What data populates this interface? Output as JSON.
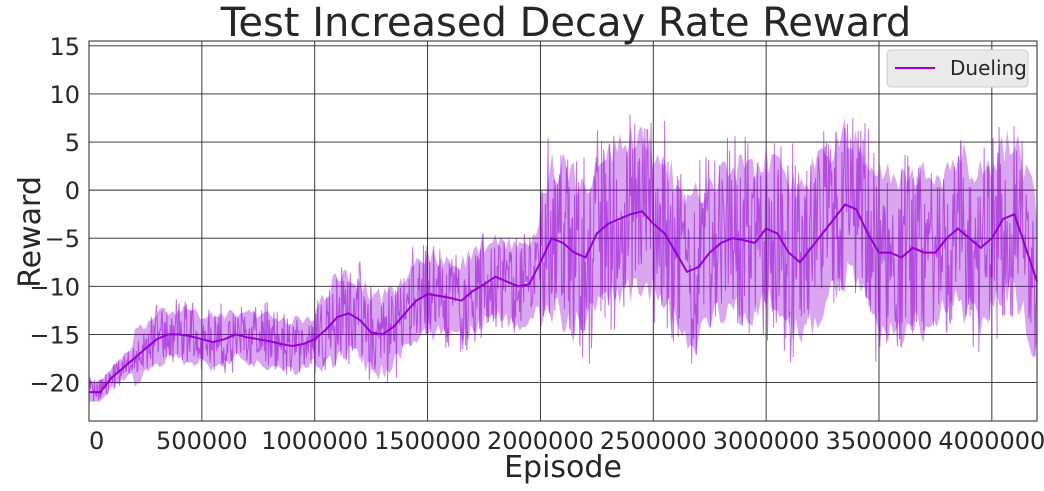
{
  "chart_data": {
    "type": "line",
    "title": "Test Increased Decay Rate Reward",
    "xlabel": "Episode",
    "ylabel": "Reward",
    "xlim": [
      0,
      4200000
    ],
    "ylim": [
      -24,
      15.5
    ],
    "xticks": [
      0,
      500000,
      1000000,
      1500000,
      2000000,
      2500000,
      3000000,
      3500000,
      4000000
    ],
    "xtick_labels": [
      "0",
      "500000",
      "1000000",
      "1500000",
      "2000000",
      "2500000",
      "3000000",
      "3500000",
      "4000000"
    ],
    "yticks": [
      -20,
      -15,
      -10,
      -5,
      0,
      5,
      10,
      15
    ],
    "ytick_labels": [
      "−20",
      "−15",
      "−10",
      "−5",
      "0",
      "5",
      "10",
      "15"
    ],
    "grid": true,
    "legend_position": "top-right",
    "series": [
      {
        "name": "Dueling",
        "color": "#9400d3",
        "smoothed": {
          "x": [
            0,
            50000,
            100000,
            150000,
            200000,
            250000,
            300000,
            350000,
            400000,
            450000,
            500000,
            550000,
            600000,
            650000,
            700000,
            750000,
            800000,
            850000,
            900000,
            950000,
            1000000,
            1050000,
            1100000,
            1150000,
            1200000,
            1250000,
            1300000,
            1350000,
            1400000,
            1450000,
            1500000,
            1550000,
            1600000,
            1650000,
            1700000,
            1750000,
            1800000,
            1850000,
            1900000,
            1950000,
            2000000,
            2050000,
            2100000,
            2150000,
            2200000,
            2250000,
            2300000,
            2350000,
            2400000,
            2450000,
            2500000,
            2550000,
            2600000,
            2650000,
            2700000,
            2750000,
            2800000,
            2850000,
            2900000,
            2950000,
            3000000,
            3050000,
            3100000,
            3150000,
            3200000,
            3250000,
            3300000,
            3350000,
            3400000,
            3450000,
            3500000,
            3550000,
            3600000,
            3650000,
            3700000,
            3750000,
            3800000,
            3850000,
            3900000,
            3950000,
            4000000,
            4050000,
            4100000,
            4150000,
            4200000
          ],
          "y": [
            -21,
            -21,
            -19.5,
            -18.5,
            -17.5,
            -16.5,
            -15.5,
            -15,
            -15,
            -15.2,
            -15.5,
            -15.8,
            -15.5,
            -15,
            -15.3,
            -15.5,
            -15.7,
            -16,
            -16.2,
            -16,
            -15.5,
            -14.5,
            -13.2,
            -12.8,
            -13.5,
            -14.8,
            -15,
            -14.2,
            -12.8,
            -11.5,
            -10.8,
            -11,
            -11.2,
            -11.5,
            -10.5,
            -9.8,
            -9,
            -9.5,
            -10,
            -9.8,
            -7.5,
            -5,
            -5.5,
            -6.5,
            -7,
            -4.5,
            -3.5,
            -3,
            -2.5,
            -2.2,
            -3.5,
            -4.5,
            -6.5,
            -8.5,
            -8,
            -6.5,
            -5.5,
            -5,
            -5.2,
            -5.5,
            -4,
            -4.5,
            -6.5,
            -7.5,
            -6,
            -4.5,
            -3,
            -1.5,
            -2,
            -4.5,
            -6.5,
            -6.5,
            -7,
            -6,
            -6.5,
            -6.5,
            -5,
            -4,
            -5,
            -6,
            -5,
            -3,
            -2.5,
            -6,
            -9.5
          ]
        }
      }
    ]
  }
}
